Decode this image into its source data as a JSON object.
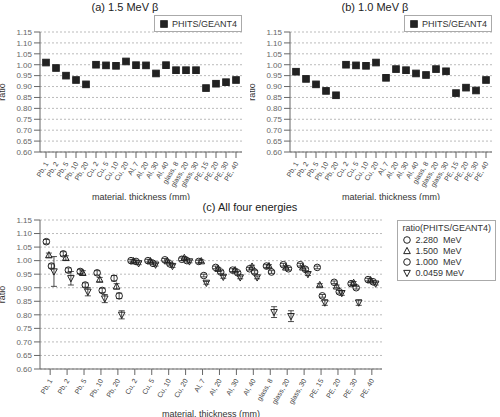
{
  "chart_data": [
    {
      "type": "scatter",
      "title": "(a) 1.5 MeV β",
      "xlabel": "material, thickness (mm)",
      "ylabel": "ratio",
      "categories": [
        "Pb,\n1",
        "Pb,\n2",
        "Pb,\n5",
        "Pb,\n10",
        "Pb,\n20",
        "Cu,\n2",
        "Cu,\n5",
        "Cu,\n10",
        "Cu,\n20",
        "Al,\n7",
        "Al,\n20",
        "Al,\n30",
        "Al,\n40",
        "glass,\n8",
        "glass,\n20",
        "glass,\n30",
        "PE,\n15",
        "PE,\n20",
        "PE,\n30",
        "PE,\n40"
      ],
      "ylim": [
        0.6,
        1.15
      ],
      "yticks": [
        {
          "value": 0.6,
          "label": "0.60"
        },
        0.65,
        {
          "value": 0.7,
          "label": "0.70"
        },
        0.75,
        {
          "value": 0.8,
          "label": "0.80"
        },
        0.85,
        {
          "value": 0.9,
          "label": "0.90"
        },
        0.95,
        {
          "value": 1.0,
          "label": "1.00"
        },
        1.05,
        {
          "value": 1.1,
          "label": "1.10"
        },
        1.15
      ],
      "grid": true,
      "legend": "upper right",
      "series": [
        {
          "name": "PHITS/GEANT4",
          "color": "#222222",
          "marker": "square",
          "values": [
            1.01,
            0.985,
            0.95,
            0.93,
            0.91,
            1.0,
            0.997,
            0.995,
            1.015,
            0.998,
            0.997,
            0.96,
            0.998,
            0.975,
            0.975,
            0.975,
            0.893,
            0.913,
            0.92,
            0.93
          ],
          "errors": [
            0.005,
            0.005,
            0.005,
            0.005,
            0.008,
            0.005,
            0.005,
            0.005,
            0.005,
            0.005,
            0.005,
            0.005,
            0.005,
            0.005,
            0.005,
            0.005,
            0.005,
            0.005,
            0.005,
            0.005
          ]
        }
      ]
    },
    {
      "type": "scatter",
      "title": "(b) 1.0 MeV β",
      "xlabel": "material, thickness (mm)",
      "ylabel": "ratio",
      "categories": [
        "Pb,\n1",
        "Pb,\n2",
        "Pb,\n5",
        "Pb,\n10",
        "Pb,\n20",
        "Cu,\n2",
        "Cu,\n5",
        "Cu,\n10",
        "Cu,\n20",
        "Al,\n7",
        "Al,\n20",
        "Al,\n30",
        "Al,\n40",
        "glass,\n8",
        "glass,\n20",
        "glass,\n30",
        "PE,\n15",
        "PE,\n20",
        "PE,\n30",
        "PE,\n40"
      ],
      "ylim": [
        0.6,
        1.15
      ],
      "yticks": [
        {
          "value": 0.6,
          "label": "0.60"
        },
        0.65,
        {
          "value": 0.7,
          "label": "0.70"
        },
        0.75,
        {
          "value": 0.8,
          "label": "0.80"
        },
        0.85,
        {
          "value": 0.9,
          "label": "0.90"
        },
        0.95,
        {
          "value": 1.0,
          "label": "1.00"
        },
        1.05,
        {
          "value": 1.1,
          "label": "1.10"
        },
        1.15
      ],
      "grid": true,
      "legend": "upper right",
      "series": [
        {
          "name": "PHITS/GEANT4",
          "color": "#222222",
          "marker": "square",
          "values": [
            0.968,
            0.935,
            0.91,
            0.88,
            0.86,
            1.0,
            0.997,
            0.995,
            1.01,
            0.94,
            0.98,
            0.975,
            0.96,
            0.953,
            0.98,
            0.97,
            0.87,
            0.895,
            0.882,
            0.93
          ],
          "errors": [
            0.005,
            0.005,
            0.005,
            0.005,
            0.008,
            0.005,
            0.005,
            0.005,
            0.008,
            0.005,
            0.005,
            0.005,
            0.005,
            0.005,
            0.005,
            0.005,
            0.005,
            0.005,
            0.005,
            0.005
          ]
        }
      ]
    },
    {
      "type": "scatter",
      "title": "(c) All four energies",
      "xlabel": "material, thickness (mm)",
      "ylabel": "ratio",
      "categories": [
        "Pb,\n1",
        "Pb,\n2",
        "Pb,\n5",
        "Pb,\n10",
        "Pb,\n20",
        "Cu,\n2",
        "Cu,\n5",
        "Cu,\n10",
        "Cu,\n20",
        "Al,\n7",
        "Al,\n20",
        "Al,\n30",
        "Al,\n40",
        "glass,\n8",
        "glass,\n20",
        "glass,\n30",
        "PE,\n15",
        "PE,\n20",
        "PE,\n30",
        "PE,\n40"
      ],
      "ylim": [
        0.6,
        1.15
      ],
      "yticks": [
        {
          "value": 0.6,
          "label": "0.60"
        },
        0.65,
        {
          "value": 0.7,
          "label": "0.70"
        },
        0.75,
        {
          "value": 0.8,
          "label": "0.80"
        },
        0.85,
        {
          "value": 0.9,
          "label": "0.90"
        },
        0.95,
        {
          "value": 1.0,
          "label": "1.00"
        },
        1.05,
        {
          "value": 1.1,
          "label": "1.10"
        },
        1.15
      ],
      "grid": true,
      "legend": "upper right",
      "legend_title": "ratio(PHITS/GEANT4)",
      "series": [
        {
          "name": "2.280  MeV",
          "color": "#222222",
          "marker": "open_circle",
          "values": [
            1.07,
            1.025,
            0.96,
            0.955,
            0.935,
            1.0,
            1.0,
            1.003,
            1.005,
            0.997,
            0.975,
            0.965,
            0.97,
            0.98,
            0.985,
            0.985,
            0.975,
            0.92,
            0.915,
            0.93
          ],
          "errors": [
            0.008,
            0.008,
            0.008,
            0.008,
            0.01,
            0.005,
            0.005,
            0.005,
            0.005,
            0.005,
            0.005,
            0.005,
            0.005,
            0.005,
            0.005,
            0.005,
            0.005,
            0.005,
            0.005,
            0.005
          ]
        },
        {
          "name": "1.500  MeV",
          "color": "#222222",
          "marker": "open_triangle_up",
          "values": [
            1.02,
            1.01,
            0.955,
            0.93,
            0.905,
            0.998,
            0.998,
            0.998,
            1.01,
            0.998,
            0.97,
            0.965,
            0.978,
            0.98,
            0.975,
            0.975,
            0.91,
            0.905,
            0.918,
            0.928
          ],
          "errors": [
            0.008,
            0.008,
            0.008,
            0.008,
            0.01,
            0.005,
            0.005,
            0.005,
            0.005,
            0.005,
            0.005,
            0.005,
            0.005,
            0.005,
            0.005,
            0.005,
            0.005,
            0.005,
            0.005,
            0.005
          ]
        },
        {
          "name": "1.000  MeV",
          "color": "#222222",
          "marker": "open_circle",
          "values": [
            0.98,
            0.965,
            0.91,
            0.89,
            0.87,
            0.997,
            0.99,
            0.988,
            1.0,
            0.945,
            0.958,
            0.955,
            0.958,
            0.958,
            0.97,
            0.968,
            0.87,
            0.885,
            0.9,
            0.922
          ],
          "errors": [
            0.008,
            0.008,
            0.008,
            0.008,
            0.01,
            0.005,
            0.005,
            0.005,
            0.005,
            0.005,
            0.005,
            0.005,
            0.005,
            0.005,
            0.005,
            0.005,
            0.005,
            0.005,
            0.005,
            0.005
          ]
        },
        {
          "name": "0.0459 MeV",
          "color": "#222222",
          "marker": "open_triangle_down",
          "values": [
            0.96,
            0.935,
            0.885,
            0.86,
            0.8,
            0.99,
            0.985,
            0.98,
            0.997,
            0.918,
            0.94,
            0.938,
            0.938,
            0.81,
            0.795,
            0.95,
            0.845,
            0.88,
            0.845,
            0.915
          ],
          "errors": [
            0.055,
            0.025,
            0.015,
            0.015,
            0.015,
            0.005,
            0.005,
            0.005,
            0.005,
            0.005,
            0.005,
            0.005,
            0.005,
            0.02,
            0.02,
            0.005,
            0.01,
            0.008,
            0.01,
            0.005
          ]
        }
      ]
    }
  ]
}
